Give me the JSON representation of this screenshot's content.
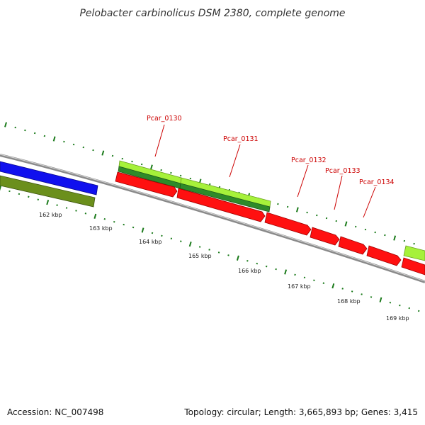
{
  "title": "Pelobacter carbinolicus DSM 2380, complete genome",
  "footer": {
    "accession": "Accession: NC_007498",
    "summary": "Topology: circular; Length: 3,665,893 bp; Genes: 3,415"
  },
  "colors": {
    "forward_cds_outer": "#a6f13a",
    "forward_cds_inner": "#2e8a2a",
    "reverse_cds": "#ff1010",
    "other_forward": "#1010ee",
    "other_reverse": "#6b8f1c",
    "backbone": "#8a8a8a",
    "tick": "#1a7a1a",
    "label": "#cc0000"
  },
  "kbp_labels": [
    "162 kbp",
    "163 kbp",
    "164 kbp",
    "165 kbp",
    "166 kbp",
    "167 kbp",
    "168 kbp",
    "169 kbp"
  ],
  "gene_labels": [
    "Pcar_0130",
    "Pcar_0131",
    "Pcar_0132",
    "Pcar_0133",
    "Pcar_0134"
  ]
}
